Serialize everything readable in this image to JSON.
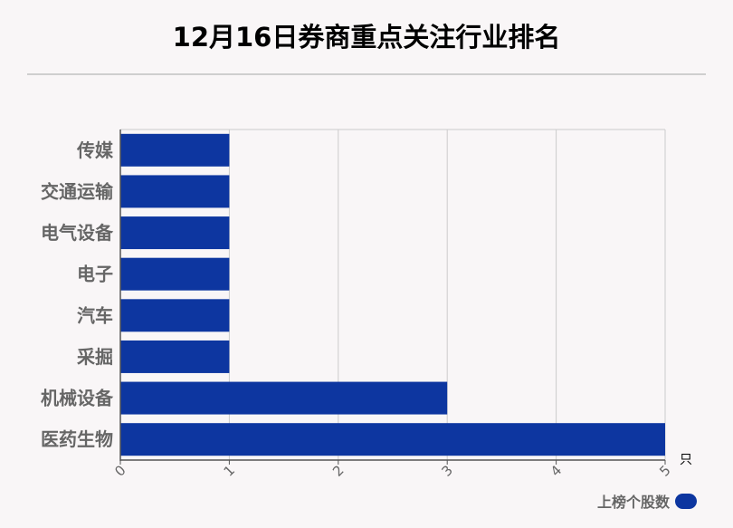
{
  "header": {
    "title": "12月16日券商重点关注行业排名"
  },
  "legend": {
    "label": "上榜个股数"
  },
  "colors": {
    "bar": "#0d36a0",
    "grid": "#cccccc",
    "background": "#f9f6f7"
  },
  "chart_data": {
    "type": "bar",
    "orientation": "horizontal",
    "categories": [
      "传媒",
      "交通运输",
      "电气设备",
      "电子",
      "汽车",
      "采掘",
      "机械设备",
      "医药生物"
    ],
    "series": [
      {
        "name": "上榜个股数",
        "values": [
          1,
          1,
          1,
          1,
          1,
          1,
          3,
          5
        ]
      }
    ],
    "title": "12月16日券商重点关注行业排名",
    "xlabel": "",
    "ylabel": "",
    "xunit": "只",
    "xlim": [
      0,
      5
    ],
    "xticks": [
      0,
      1,
      2,
      3,
      4,
      5
    ],
    "grid": true,
    "legend_position": "bottom-right"
  }
}
